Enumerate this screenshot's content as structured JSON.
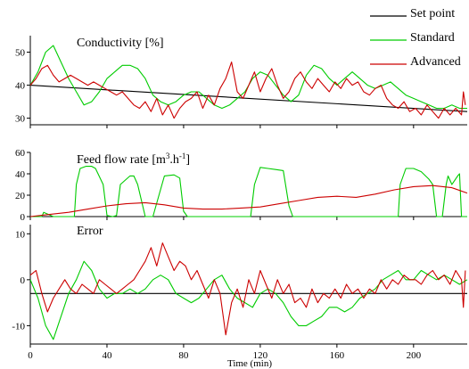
{
  "chart_data": {
    "type": "line",
    "x_range": [
      0,
      228
    ],
    "x_ticks": [
      0,
      40,
      80,
      120,
      160,
      200
    ],
    "xlabel": "Time (min)",
    "legend": {
      "placement": "top-right",
      "entries": [
        {
          "label": "Set point",
          "color": "#000000"
        },
        {
          "label": "Standard",
          "color": "#00cc00"
        },
        {
          "label": "Advanced",
          "color": "#cc0000"
        }
      ]
    },
    "panels": [
      {
        "title": "Conductivity [%]",
        "ylim": [
          28,
          55
        ],
        "y_ticks": [
          30,
          40,
          50
        ],
        "series": [
          {
            "name": "Set point",
            "color": "#000000",
            "x": [
              0,
              228
            ],
            "y": [
              40,
              32
            ]
          },
          {
            "name": "Standard",
            "color": "#00cc00",
            "x": [
              0,
              4,
              8,
              12,
              16,
              20,
              24,
              28,
              32,
              36,
              40,
              44,
              48,
              52,
              56,
              60,
              64,
              68,
              72,
              76,
              80,
              84,
              88,
              92,
              96,
              100,
              104,
              108,
              112,
              116,
              120,
              124,
              128,
              132,
              136,
              140,
              144,
              148,
              152,
              156,
              160,
              164,
              168,
              172,
              176,
              180,
              184,
              188,
              192,
              196,
              200,
              204,
              208,
              212,
              216,
              220,
              224,
              228
            ],
            "y": [
              40,
              44,
              50,
              52,
              47,
              42,
              38,
              34,
              35,
              38,
              42,
              44,
              46,
              46,
              45,
              42,
              37,
              35,
              34,
              35,
              37,
              38,
              38,
              36,
              34,
              33,
              34,
              36,
              38,
              42,
              44,
              43,
              40,
              37,
              35,
              37,
              43,
              46,
              45,
              42,
              40,
              42,
              44,
              42,
              40,
              39,
              40,
              41,
              39,
              37,
              36,
              35,
              34,
              33,
              33,
              34,
              33,
              33
            ]
          },
          {
            "name": "Advanced",
            "color": "#cc0000",
            "x": [
              0,
              3,
              6,
              9,
              12,
              15,
              18,
              21,
              24,
              27,
              30,
              33,
              36,
              39,
              42,
              45,
              48,
              51,
              54,
              57,
              60,
              63,
              66,
              69,
              72,
              75,
              78,
              81,
              84,
              87,
              90,
              93,
              96,
              99,
              102,
              105,
              108,
              111,
              114,
              117,
              120,
              123,
              126,
              129,
              132,
              135,
              138,
              141,
              144,
              147,
              150,
              153,
              156,
              159,
              162,
              165,
              168,
              171,
              174,
              177,
              180,
              183,
              186,
              189,
              192,
              195,
              198,
              201,
              204,
              207,
              210,
              213,
              216,
              219,
              222,
              225,
              226,
              227
            ],
            "y": [
              40,
              42,
              45,
              46,
              43,
              41,
              42,
              43,
              42,
              41,
              40,
              41,
              40,
              39,
              38,
              37,
              38,
              36,
              34,
              33,
              35,
              32,
              36,
              31,
              34,
              30,
              33,
              35,
              36,
              38,
              33,
              37,
              34,
              39,
              42,
              47,
              38,
              36,
              40,
              44,
              38,
              42,
              45,
              40,
              36,
              38,
              42,
              44,
              41,
              39,
              42,
              40,
              38,
              41,
              39,
              42,
              40,
              41,
              38,
              37,
              39,
              40,
              36,
              34,
              33,
              35,
              32,
              33,
              31,
              34,
              32,
              30,
              33,
              31,
              33,
              31,
              38,
              34
            ]
          }
        ]
      },
      {
        "title": "Feed flow rate [m3.h-1]",
        "ylim": [
          0,
          60
        ],
        "y_ticks": [
          0,
          20,
          40,
          60
        ],
        "series": [
          {
            "name": "Standard",
            "color": "#00cc00",
            "x": [
              0,
              6,
              7,
              12,
              14,
              17,
              20,
              23,
              24,
              26,
              29,
              32,
              34,
              38,
              40,
              43,
              45,
              47,
              52,
              54,
              56,
              60,
              63,
              64,
              70,
              75,
              78,
              80,
              82,
              97,
              100,
              115,
              117,
              120,
              124,
              128,
              132,
              135,
              137,
              192,
              193,
              196,
              200,
              204,
              208,
              210,
              212,
              213,
              215,
              217,
              218,
              220,
              223,
              224,
              225,
              228
            ],
            "y": [
              0,
              0,
              4,
              0,
              0,
              0,
              0,
              0,
              30,
              45,
              47,
              47,
              45,
              30,
              1,
              0,
              1,
              30,
              38,
              38,
              30,
              0,
              0,
              0,
              38,
              39,
              36,
              5,
              0,
              0,
              0,
              0,
              30,
              46,
              45,
              44,
              43,
              10,
              0,
              0,
              30,
              45,
              45,
              42,
              35,
              30,
              0,
              0,
              0,
              30,
              38,
              30,
              38,
              40,
              0,
              0
            ]
          },
          {
            "name": "Advanced",
            "color": "#cc0000",
            "x": [
              0,
              10,
              20,
              30,
              40,
              50,
              60,
              70,
              80,
              90,
              100,
              110,
              120,
              130,
              140,
              150,
              160,
              170,
              180,
              190,
              200,
              210,
              220,
              228
            ],
            "y": [
              0,
              2,
              4,
              7,
              10,
              12,
              13,
              11,
              8,
              7,
              7,
              8,
              9,
              12,
              15,
              18,
              19,
              18,
              21,
              25,
              28,
              29,
              27,
              22
            ]
          }
        ]
      },
      {
        "title": "Error",
        "ylim": [
          -14,
          12
        ],
        "y_ticks": [
          -10,
          0,
          10
        ],
        "series": [
          {
            "name": "Set point",
            "color": "#000000",
            "x": [
              0,
              228
            ],
            "y": [
              -3,
              -3
            ]
          },
          {
            "name": "Standard",
            "color": "#00cc00",
            "x": [
              0,
              4,
              8,
              12,
              16,
              20,
              24,
              28,
              32,
              36,
              40,
              44,
              48,
              52,
              56,
              60,
              64,
              68,
              72,
              76,
              80,
              84,
              88,
              92,
              96,
              100,
              104,
              108,
              112,
              116,
              120,
              124,
              128,
              132,
              136,
              140,
              144,
              148,
              152,
              156,
              160,
              164,
              168,
              172,
              176,
              180,
              184,
              188,
              192,
              196,
              200,
              204,
              208,
              212,
              216,
              220,
              224,
              228
            ],
            "y": [
              0,
              -4,
              -10,
              -13,
              -8,
              -3,
              0,
              4,
              2,
              -2,
              -4,
              -3,
              -3,
              -2,
              -3,
              -2,
              0,
              1,
              0,
              -3,
              -4,
              -5,
              -4,
              -2,
              0,
              1,
              -2,
              -4,
              -5,
              -6,
              -3,
              -2,
              -3,
              -5,
              -8,
              -10,
              -10,
              -9,
              -8,
              -6,
              -6,
              -7,
              -6,
              -4,
              -3,
              -2,
              0,
              1,
              2,
              0,
              0,
              2,
              1,
              0,
              1,
              0,
              -1,
              0
            ]
          },
          {
            "name": "Advanced",
            "color": "#cc0000",
            "x": [
              0,
              3,
              6,
              9,
              12,
              15,
              18,
              21,
              24,
              27,
              30,
              33,
              36,
              39,
              42,
              45,
              48,
              51,
              54,
              57,
              60,
              63,
              66,
              69,
              72,
              75,
              78,
              81,
              84,
              87,
              90,
              93,
              96,
              99,
              102,
              105,
              108,
              111,
              114,
              117,
              120,
              123,
              126,
              129,
              132,
              135,
              138,
              141,
              144,
              147,
              150,
              153,
              156,
              159,
              162,
              165,
              168,
              171,
              174,
              177,
              180,
              183,
              186,
              189,
              192,
              195,
              198,
              201,
              204,
              207,
              210,
              213,
              216,
              219,
              222,
              225,
              226,
              227
            ],
            "y": [
              1,
              2,
              -3,
              -7,
              -4,
              -2,
              0,
              -2,
              -3,
              -1,
              -2,
              -3,
              0,
              -1,
              -2,
              -3,
              -2,
              -1,
              0,
              2,
              4,
              7,
              3,
              8,
              5,
              2,
              4,
              3,
              0,
              2,
              -1,
              -4,
              0,
              -3,
              -12,
              -5,
              -2,
              -6,
              0,
              -3,
              2,
              -1,
              -4,
              0,
              -3,
              -1,
              -5,
              -4,
              -6,
              -2,
              -5,
              -3,
              -4,
              -2,
              -4,
              -1,
              -3,
              -2,
              -4,
              -2,
              -3,
              0,
              -2,
              0,
              -1,
              1,
              0,
              0,
              -1,
              1,
              2,
              0,
              1,
              -1,
              2,
              0,
              -6,
              2
            ]
          }
        ]
      }
    ]
  }
}
